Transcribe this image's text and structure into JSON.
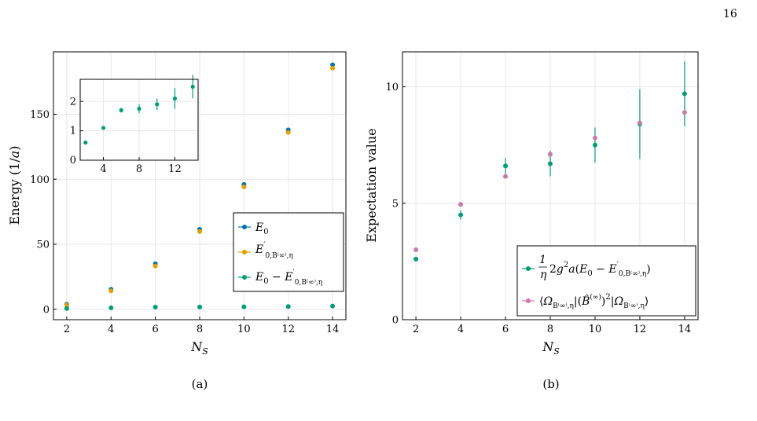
{
  "page": {
    "number": "16"
  },
  "colors": {
    "blue": "#0072b2",
    "orange": "#e69f00",
    "green": "#009e73",
    "pink": "#cc79a7"
  },
  "chart_data": [
    {
      "id": "a",
      "type": "scatter",
      "caption": "(a)",
      "xlabel": "N_S",
      "ylabel": "Energy (1/a)",
      "xlim": [
        1.4,
        14.6
      ],
      "ylim": [
        -8,
        198
      ],
      "xticks": [
        2,
        4,
        6,
        8,
        10,
        12,
        14
      ],
      "yticks": [
        0,
        50,
        100,
        150
      ],
      "grid": true,
      "legend_position": "right",
      "x": [
        2,
        4,
        6,
        8,
        10,
        12,
        14
      ],
      "series": [
        {
          "name": "E_0",
          "color": "#0072b2",
          "values": [
            3.8,
            15.3,
            35.0,
            61.5,
            96.0,
            138.0,
            188.0
          ]
        },
        {
          "name": "E'_{0,B(∞),η}",
          "color": "#e69f00",
          "values": [
            3.2,
            14.2,
            33.3,
            59.8,
            94.2,
            136.0,
            185.5
          ]
        },
        {
          "name": "E_0 − E'_{0,B(∞),η}",
          "color": "#009e73",
          "values": [
            0.6,
            1.1,
            1.7,
            1.75,
            1.9,
            2.1,
            2.5
          ],
          "errors": [
            0.04,
            0.06,
            0.08,
            0.15,
            0.2,
            0.35,
            0.4
          ]
        }
      ],
      "inset": {
        "xlim": [
          1.4,
          14.6
        ],
        "ylim": [
          0,
          2.75
        ],
        "xticks": [
          4,
          8,
          12
        ],
        "yticks": [
          0,
          1,
          2
        ],
        "series_index": 2
      }
    },
    {
      "id": "b",
      "type": "scatter",
      "caption": "(b)",
      "xlabel": "N_S",
      "ylabel": "Expectation value",
      "xlim": [
        1.4,
        14.6
      ],
      "ylim": [
        0,
        11.5
      ],
      "xticks": [
        2,
        4,
        6,
        8,
        10,
        12,
        14
      ],
      "yticks": [
        0,
        5,
        10
      ],
      "grid": true,
      "legend_position": "bottom-right",
      "x": [
        2,
        4,
        6,
        8,
        10,
        12,
        14
      ],
      "series": [
        {
          "name": "(1/η) 2g²a(E_0 − E'_{0,B(∞),η})",
          "color": "#009e73",
          "values": [
            2.6,
            4.5,
            6.6,
            6.7,
            7.5,
            8.4,
            9.7
          ],
          "errors": [
            0.1,
            0.2,
            0.35,
            0.55,
            0.75,
            1.5,
            1.4
          ]
        },
        {
          "name": "⟨Ω_{B(∞),η}|(B̂(∞))²|Ω_{B(∞),η}⟩",
          "color": "#cc79a7",
          "values": [
            3.0,
            4.95,
            6.15,
            7.1,
            7.8,
            8.45,
            8.9
          ]
        }
      ]
    }
  ]
}
